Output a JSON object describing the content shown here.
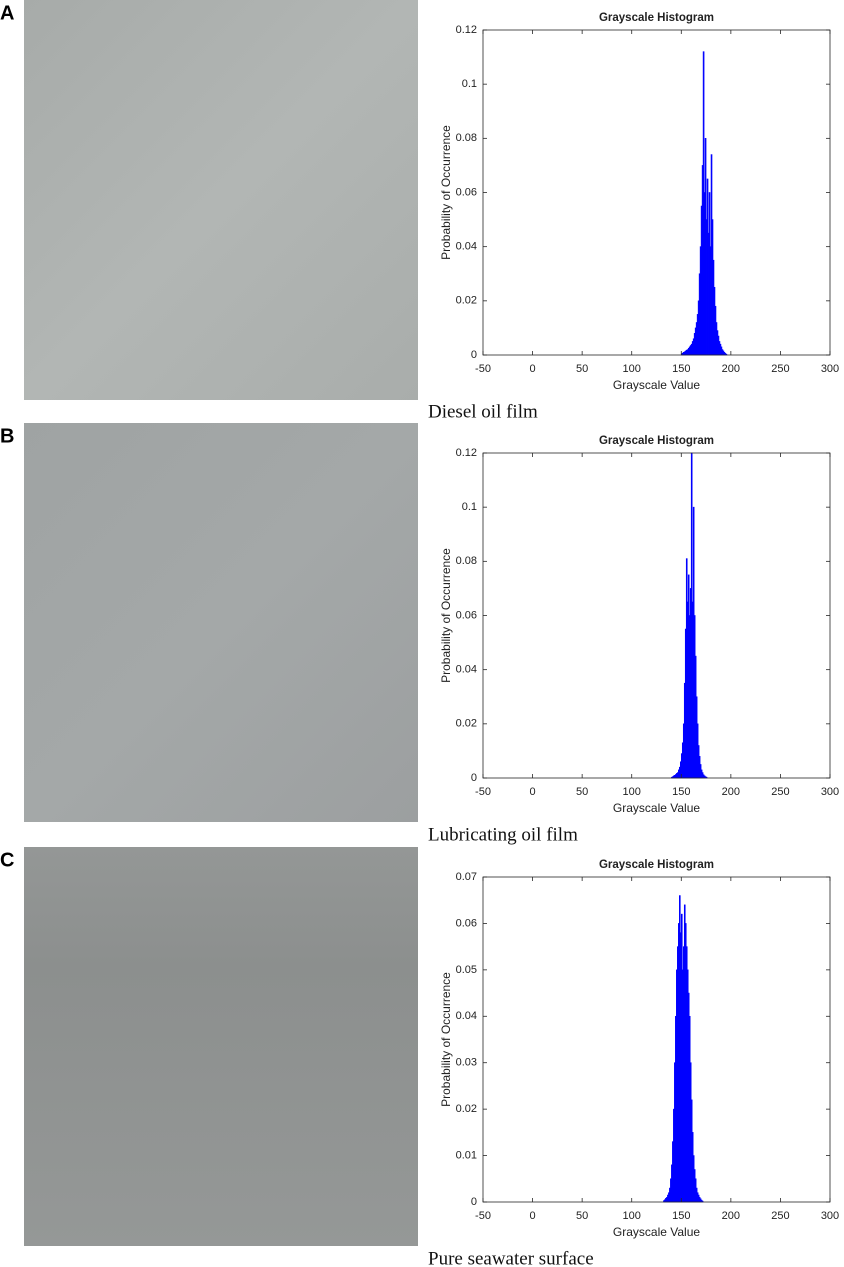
{
  "chart_data": [
    {
      "type": "histogram",
      "panel_label": "A",
      "caption": "Diesel oil film",
      "title": "Grayscale Histogram",
      "xlabel": "Grayscale Value",
      "ylabel": "Probability of Occurrence",
      "color": "#0000ff",
      "bins": [
        0,
        150,
        151,
        152,
        153,
        154,
        155,
        156,
        157,
        158,
        159,
        160,
        161,
        162,
        163,
        164,
        165,
        166,
        167,
        168,
        169,
        170,
        171,
        172,
        173,
        174,
        175,
        176,
        177,
        178,
        179,
        180,
        181,
        182,
        183,
        184,
        185,
        186,
        187,
        188,
        189,
        190,
        191,
        192,
        193,
        194,
        195,
        196,
        256
      ],
      "values": [
        0,
        0.0005,
        0.0007,
        0.001,
        0.0012,
        0.0015,
        0.0018,
        0.002,
        0.0025,
        0.003,
        0.0035,
        0.004,
        0.005,
        0.006,
        0.008,
        0.01,
        0.012,
        0.015,
        0.02,
        0.03,
        0.04,
        0.055,
        0.07,
        0.112,
        0.06,
        0.08,
        0.05,
        0.065,
        0.045,
        0.06,
        0.04,
        0.074,
        0.05,
        0.035,
        0.025,
        0.018,
        0.012,
        0.009,
        0.007,
        0.005,
        0.004,
        0.003,
        0.002,
        0.0015,
        0.001,
        0.0006,
        0.0003,
        0
      ],
      "xlim": [
        -50,
        300
      ],
      "xticks": [
        -50,
        0,
        50,
        100,
        150,
        200,
        250,
        300
      ],
      "ylim": [
        0,
        0.12
      ],
      "yticks": [
        0,
        0.02,
        0.04,
        0.06,
        0.08,
        0.1,
        0.12
      ]
    },
    {
      "type": "histogram",
      "panel_label": "B",
      "caption": "Lubricating oil film",
      "title": "Grayscale Histogram",
      "xlabel": "Grayscale Value",
      "ylabel": "Probability of Occurrence",
      "color": "#0000ff",
      "bins": [
        0,
        140,
        141,
        142,
        143,
        144,
        145,
        146,
        147,
        148,
        149,
        150,
        151,
        152,
        153,
        154,
        155,
        156,
        157,
        158,
        159,
        160,
        161,
        162,
        163,
        164,
        165,
        166,
        167,
        168,
        169,
        170,
        171,
        172,
        173,
        174,
        175,
        176,
        256
      ],
      "values": [
        0,
        0.0003,
        0.0005,
        0.0008,
        0.001,
        0.0013,
        0.0017,
        0.002,
        0.003,
        0.004,
        0.006,
        0.009,
        0.013,
        0.02,
        0.035,
        0.055,
        0.081,
        0.065,
        0.075,
        0.06,
        0.07,
        0.12,
        0.065,
        0.1,
        0.06,
        0.045,
        0.03,
        0.02,
        0.012,
        0.008,
        0.005,
        0.003,
        0.002,
        0.0012,
        0.0008,
        0.0005,
        0.0003,
        0
      ],
      "xlim": [
        -50,
        300
      ],
      "xticks": [
        -50,
        0,
        50,
        100,
        150,
        200,
        250,
        300
      ],
      "ylim": [
        0,
        0.12
      ],
      "yticks": [
        0,
        0.02,
        0.04,
        0.06,
        0.08,
        0.1,
        0.12
      ]
    },
    {
      "type": "histogram",
      "panel_label": "C",
      "caption": "Pure seawater surface",
      "title": "Grayscale Histogram",
      "xlabel": "Grayscale Value",
      "ylabel": "Probability of Occurrence",
      "color": "#0000ff",
      "bins": [
        0,
        132,
        133,
        134,
        135,
        136,
        137,
        138,
        139,
        140,
        141,
        142,
        143,
        144,
        145,
        146,
        147,
        148,
        149,
        150,
        151,
        152,
        153,
        154,
        155,
        156,
        157,
        158,
        159,
        160,
        161,
        162,
        163,
        164,
        165,
        166,
        167,
        168,
        169,
        170,
        171,
        172,
        256
      ],
      "values": [
        0,
        0.0003,
        0.0005,
        0.0008,
        0.001,
        0.0015,
        0.002,
        0.003,
        0.005,
        0.008,
        0.013,
        0.02,
        0.03,
        0.04,
        0.05,
        0.055,
        0.06,
        0.066,
        0.058,
        0.062,
        0.05,
        0.055,
        0.064,
        0.06,
        0.055,
        0.05,
        0.045,
        0.04,
        0.03,
        0.022,
        0.015,
        0.01,
        0.007,
        0.005,
        0.003,
        0.002,
        0.0015,
        0.001,
        0.0007,
        0.0004,
        0.0002,
        0
      ],
      "xlim": [
        -50,
        300
      ],
      "xticks": [
        -50,
        0,
        50,
        100,
        150,
        200,
        250,
        300
      ],
      "ylim": [
        0,
        0.07
      ],
      "yticks": [
        0,
        0.01,
        0.02,
        0.03,
        0.04,
        0.05,
        0.06,
        0.07
      ]
    }
  ]
}
